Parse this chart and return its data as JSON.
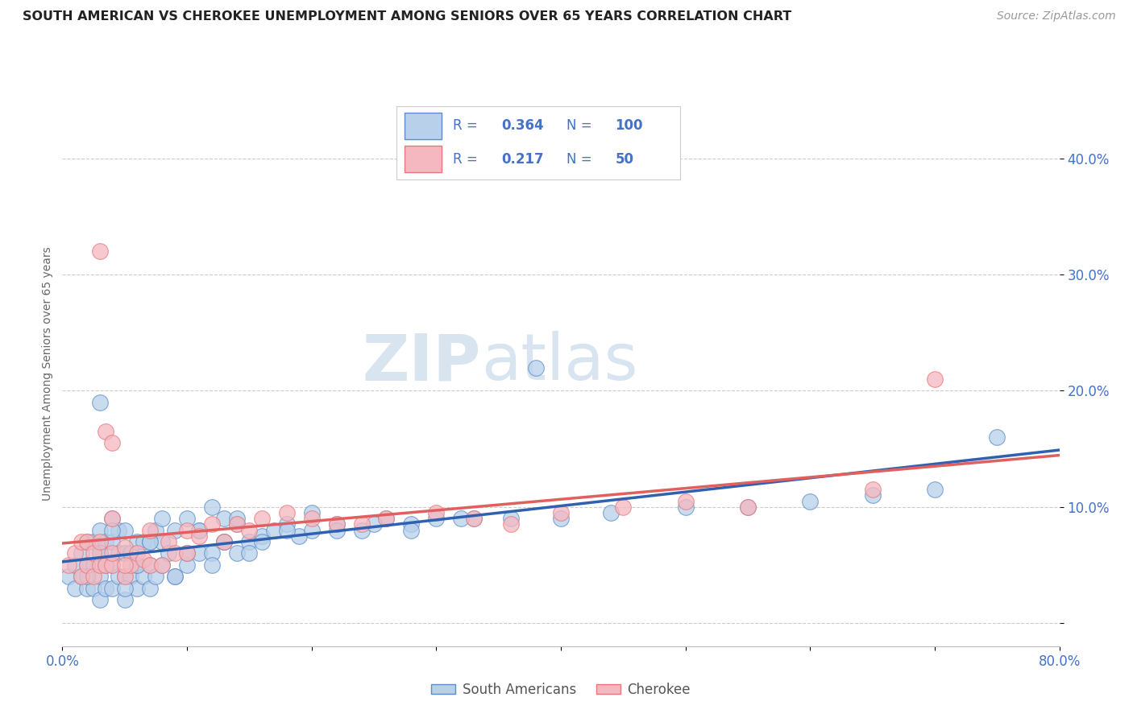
{
  "title": "SOUTH AMERICAN VS CHEROKEE UNEMPLOYMENT AMONG SENIORS OVER 65 YEARS CORRELATION CHART",
  "source": "Source: ZipAtlas.com",
  "ylabel": "Unemployment Among Seniors over 65 years",
  "xlim": [
    0.0,
    0.8
  ],
  "ylim": [
    -0.02,
    0.45
  ],
  "xticks": [
    0.0,
    0.1,
    0.2,
    0.3,
    0.4,
    0.5,
    0.6,
    0.7,
    0.8
  ],
  "xticklabels": [
    "0.0%",
    "",
    "",
    "",
    "",
    "",
    "",
    "",
    "80.0%"
  ],
  "ytick_positions": [
    0.0,
    0.1,
    0.2,
    0.3,
    0.4
  ],
  "yticklabels": [
    "",
    "10.0%",
    "20.0%",
    "30.0%",
    "40.0%"
  ],
  "blue_R": 0.364,
  "blue_N": 100,
  "pink_R": 0.217,
  "pink_N": 50,
  "blue_fill": "#b8d0ea",
  "pink_fill": "#f5b8c0",
  "blue_edge": "#5b8dc8",
  "pink_edge": "#e87878",
  "blue_line": "#3060b0",
  "pink_line": "#e06060",
  "legend_label_blue": "South Americans",
  "legend_label_pink": "Cherokee",
  "text_blue": "#4472c4",
  "tick_color": "#4472c4",
  "grid_color": "#cccccc",
  "title_color": "#222222",
  "source_color": "#999999",
  "ylabel_color": "#666666",
  "watermark_color": "#d8e4f0",
  "blue_scatter_x": [
    0.005,
    0.01,
    0.01,
    0.015,
    0.015,
    0.02,
    0.02,
    0.02,
    0.025,
    0.025,
    0.025,
    0.03,
    0.03,
    0.03,
    0.03,
    0.03,
    0.035,
    0.035,
    0.035,
    0.04,
    0.04,
    0.04,
    0.04,
    0.045,
    0.045,
    0.045,
    0.05,
    0.05,
    0.05,
    0.05,
    0.055,
    0.055,
    0.06,
    0.06,
    0.06,
    0.065,
    0.065,
    0.07,
    0.07,
    0.07,
    0.075,
    0.075,
    0.08,
    0.08,
    0.085,
    0.09,
    0.09,
    0.1,
    0.1,
    0.11,
    0.11,
    0.12,
    0.12,
    0.13,
    0.13,
    0.14,
    0.14,
    0.15,
    0.16,
    0.17,
    0.18,
    0.19,
    0.2,
    0.22,
    0.24,
    0.26,
    0.28,
    0.3,
    0.33,
    0.36,
    0.4,
    0.44,
    0.5,
    0.55,
    0.6,
    0.65,
    0.7,
    0.75,
    0.02,
    0.03,
    0.04,
    0.05,
    0.06,
    0.07,
    0.08,
    0.09,
    0.1,
    0.11,
    0.12,
    0.13,
    0.14,
    0.15,
    0.16,
    0.18,
    0.2,
    0.22,
    0.25,
    0.28,
    0.32,
    0.38
  ],
  "blue_scatter_y": [
    0.04,
    0.03,
    0.05,
    0.04,
    0.06,
    0.03,
    0.05,
    0.07,
    0.03,
    0.05,
    0.07,
    0.02,
    0.04,
    0.06,
    0.08,
    0.19,
    0.03,
    0.05,
    0.07,
    0.03,
    0.05,
    0.07,
    0.09,
    0.04,
    0.06,
    0.08,
    0.02,
    0.04,
    0.06,
    0.08,
    0.04,
    0.06,
    0.03,
    0.05,
    0.07,
    0.04,
    0.07,
    0.03,
    0.05,
    0.07,
    0.04,
    0.08,
    0.05,
    0.07,
    0.06,
    0.04,
    0.08,
    0.05,
    0.09,
    0.06,
    0.08,
    0.06,
    0.1,
    0.07,
    0.09,
    0.06,
    0.085,
    0.07,
    0.075,
    0.08,
    0.085,
    0.075,
    0.095,
    0.085,
    0.08,
    0.09,
    0.085,
    0.09,
    0.09,
    0.09,
    0.09,
    0.095,
    0.1,
    0.1,
    0.105,
    0.11,
    0.115,
    0.16,
    0.04,
    0.06,
    0.08,
    0.03,
    0.05,
    0.07,
    0.09,
    0.04,
    0.06,
    0.08,
    0.05,
    0.07,
    0.09,
    0.06,
    0.07,
    0.08,
    0.08,
    0.08,
    0.085,
    0.08,
    0.09,
    0.22
  ],
  "pink_scatter_x": [
    0.005,
    0.01,
    0.015,
    0.015,
    0.02,
    0.02,
    0.025,
    0.025,
    0.03,
    0.03,
    0.035,
    0.035,
    0.04,
    0.04,
    0.04,
    0.05,
    0.05,
    0.055,
    0.06,
    0.065,
    0.07,
    0.07,
    0.08,
    0.085,
    0.09,
    0.1,
    0.1,
    0.11,
    0.12,
    0.13,
    0.14,
    0.15,
    0.16,
    0.18,
    0.2,
    0.22,
    0.24,
    0.26,
    0.3,
    0.33,
    0.36,
    0.4,
    0.45,
    0.5,
    0.55,
    0.65,
    0.7,
    0.03,
    0.04,
    0.05
  ],
  "pink_scatter_y": [
    0.05,
    0.06,
    0.04,
    0.07,
    0.05,
    0.07,
    0.04,
    0.06,
    0.05,
    0.07,
    0.05,
    0.165,
    0.05,
    0.06,
    0.155,
    0.04,
    0.065,
    0.05,
    0.06,
    0.055,
    0.05,
    0.08,
    0.05,
    0.07,
    0.06,
    0.06,
    0.08,
    0.075,
    0.085,
    0.07,
    0.085,
    0.08,
    0.09,
    0.095,
    0.09,
    0.085,
    0.085,
    0.09,
    0.095,
    0.09,
    0.085,
    0.095,
    0.1,
    0.105,
    0.1,
    0.115,
    0.21,
    0.32,
    0.09,
    0.05
  ]
}
